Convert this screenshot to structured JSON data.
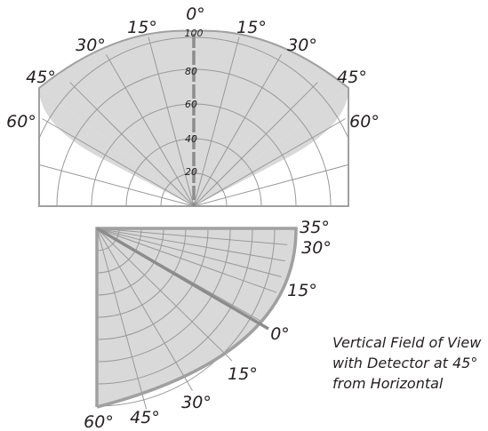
{
  "horizontal_view": {
    "angle_labels": {
      "center": "0°",
      "left_15": "15°",
      "right_15": "15°",
      "left_30": "30°",
      "right_30": "30°",
      "left_45": "45°",
      "right_45": "45°",
      "left_60": "60°",
      "right_60": "60°"
    },
    "range_labels": [
      "20",
      "40",
      "60",
      "80",
      "100"
    ]
  },
  "vertical_view": {
    "right_labels": {
      "a35": "35°",
      "a30": "30°",
      "a15": "15°",
      "a0": "0°"
    },
    "bottom_labels": {
      "b15": "15°",
      "b30": "30°",
      "b45": "45°",
      "b60": "60°"
    }
  },
  "caption": {
    "line1": "Vertical Field of View",
    "line2": "with Detector at 45°",
    "line3": "from Horizontal"
  },
  "colors": {
    "coverage_fill": "#d9d9d9",
    "grid_line": "#999999",
    "outline": "#a0a0a0",
    "axis": "#8c8c8c",
    "text": "#231f20"
  }
}
